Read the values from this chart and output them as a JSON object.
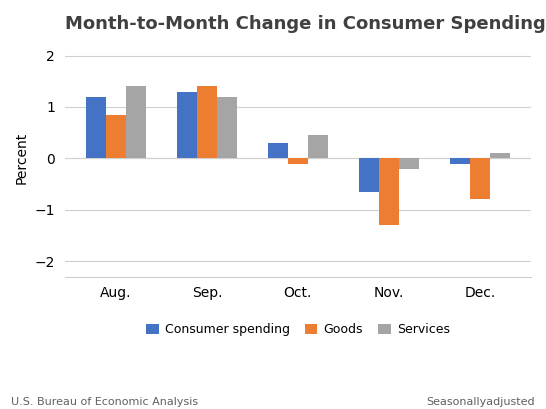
{
  "title": "Month-to-Month Change in Consumer Spending",
  "ylabel": "Percent",
  "categories": [
    "Aug.",
    "Sep.",
    "Oct.",
    "Nov.",
    "Dec."
  ],
  "series": {
    "Consumer spending": [
      1.2,
      1.3,
      0.3,
      -0.65,
      -0.1
    ],
    "Goods": [
      0.85,
      1.4,
      -0.1,
      -1.3,
      -0.8
    ],
    "Services": [
      1.4,
      1.2,
      0.45,
      -0.2,
      0.1
    ]
  },
  "colors": {
    "Consumer spending": "#4472C4",
    "Goods": "#ED7D31",
    "Services": "#A5A5A5"
  },
  "ylim": [
    -2.3,
    2.3
  ],
  "yticks": [
    -2,
    -1,
    0,
    1,
    2
  ],
  "bar_width": 0.22,
  "background_color": "#ffffff",
  "footer_left": "U.S. Bureau of Economic Analysis",
  "footer_right": "Seasonallyadjusted",
  "title_fontsize": 13,
  "title_color": "#404040",
  "axis_label_fontsize": 10,
  "tick_fontsize": 10,
  "legend_fontsize": 9,
  "footer_fontsize": 8
}
